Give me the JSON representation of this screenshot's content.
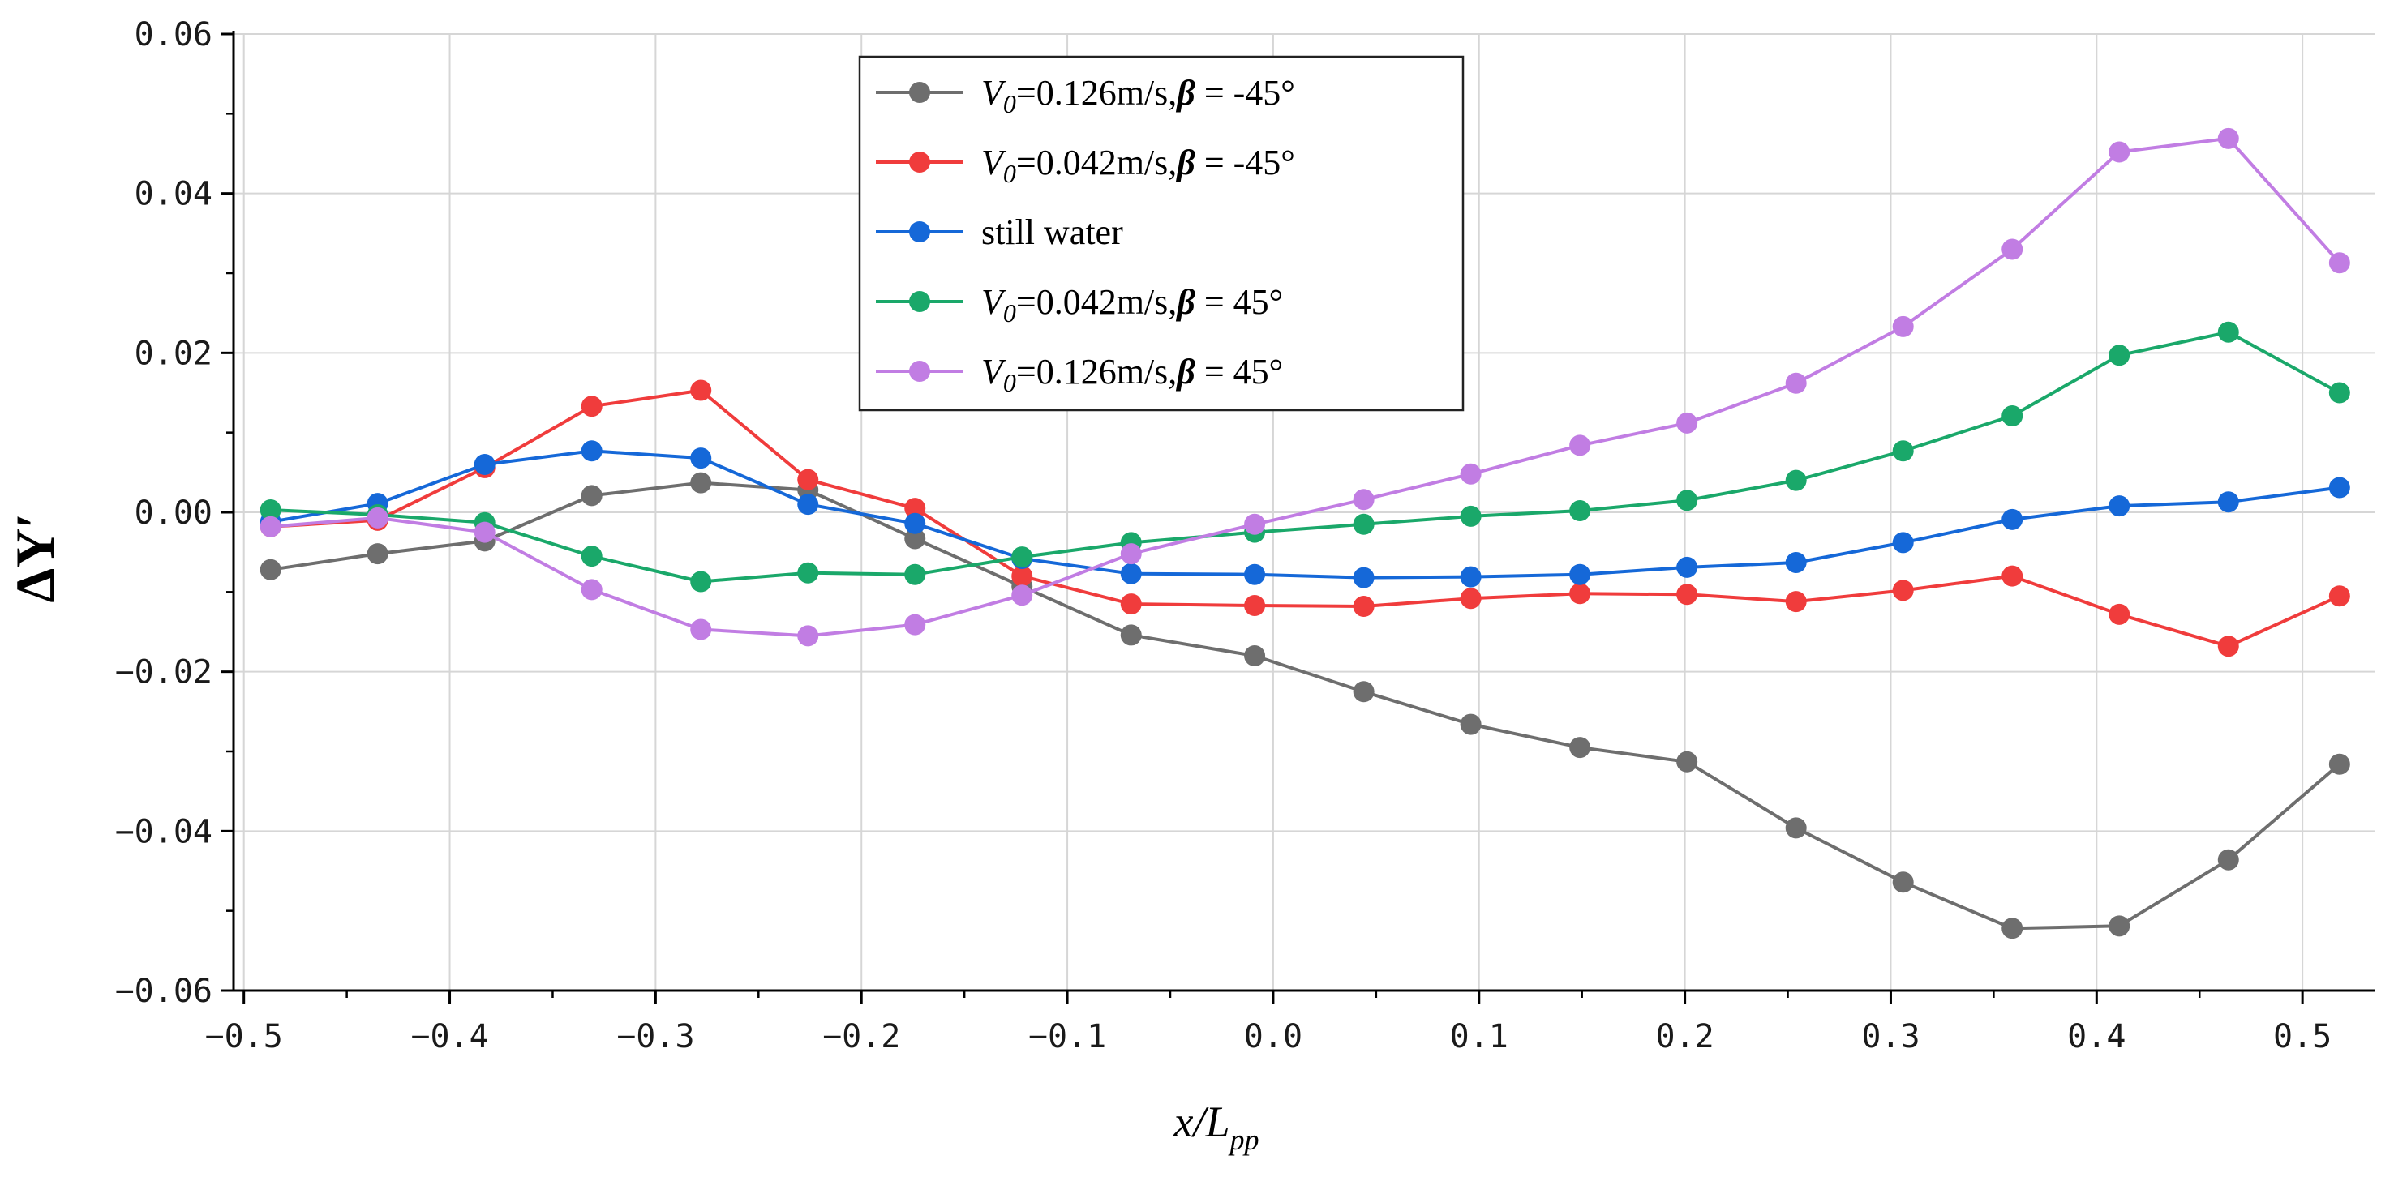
{
  "chart_data": {
    "type": "line",
    "xlabel": "x/L",
    "xlabel_sub": "pp",
    "ylabel": "ΔY′",
    "xlim": [
      -0.505,
      0.535
    ],
    "ylim": [
      -0.06,
      0.06
    ],
    "grid": true,
    "legend_position": "top-center",
    "x_ticks": [
      -0.5,
      -0.4,
      -0.3,
      -0.2,
      -0.1,
      0.0,
      0.1,
      0.2,
      0.3,
      0.4,
      0.5
    ],
    "x_tick_labels": [
      "−0.5",
      "−0.4",
      "−0.3",
      "−0.2",
      "−0.1",
      "0.0",
      "0.1",
      "0.2",
      "0.3",
      "0.4",
      "0.5"
    ],
    "y_ticks": [
      -0.06,
      -0.04,
      -0.02,
      0.0,
      0.02,
      0.04,
      0.06
    ],
    "y_tick_labels": [
      "−0.06",
      "−0.04",
      "−0.02",
      "0.00",
      "0.02",
      "0.04",
      "0.06"
    ],
    "x": [
      -0.487,
      -0.435,
      -0.383,
      -0.331,
      -0.278,
      -0.226,
      -0.174,
      -0.122,
      -0.069,
      -0.009,
      0.044,
      0.096,
      0.149,
      0.201,
      0.254,
      0.306,
      0.359,
      0.411,
      0.464,
      0.518
    ],
    "series": [
      {
        "name": "V0=0.126m/s,β = -45°",
        "legend_prefix": "=0.126m/s,",
        "legend_suffix": " = -45°",
        "color": "#6e6e6e",
        "values": [
          -0.0072,
          -0.0052,
          -0.0036,
          0.0021,
          0.0037,
          0.0028,
          -0.0033,
          -0.0093,
          -0.0154,
          -0.018,
          -0.0225,
          -0.0266,
          -0.0295,
          -0.0313,
          -0.0396,
          -0.0464,
          -0.0522,
          -0.0519,
          -0.0436,
          -0.0316
        ]
      },
      {
        "name": "V0=0.042m/s,β = -45°",
        "legend_prefix": "=0.042m/s,",
        "legend_suffix": " = -45°",
        "color": "#f03c3c",
        "values": [
          -0.0018,
          -0.001,
          0.0056,
          0.0133,
          0.0153,
          0.0041,
          0.0005,
          -0.008,
          -0.0115,
          -0.0117,
          -0.0118,
          -0.0108,
          -0.0102,
          -0.0103,
          -0.0112,
          -0.0098,
          -0.008,
          -0.0128,
          -0.0168,
          -0.0105
        ]
      },
      {
        "name": "still water",
        "legend_label": "still water",
        "color": "#1568d8",
        "values": [
          -0.0012,
          0.0011,
          0.006,
          0.0077,
          0.0068,
          0.001,
          -0.0014,
          -0.0058,
          -0.0077,
          -0.0078,
          -0.0082,
          -0.0081,
          -0.0078,
          -0.0069,
          -0.0063,
          -0.0038,
          -0.0009,
          0.0008,
          0.0013,
          0.0031
        ]
      },
      {
        "name": "V0=0.042m/s,β = 45°",
        "legend_prefix": "=0.042m/s,",
        "legend_suffix": " = 45°",
        "color": "#1aa86a",
        "values": [
          0.0003,
          -0.0003,
          -0.0013,
          -0.0055,
          -0.0087,
          -0.0076,
          -0.0078,
          -0.0056,
          -0.0038,
          -0.0025,
          -0.0015,
          -0.0005,
          0.0002,
          0.0015,
          0.004,
          0.0077,
          0.0121,
          0.0197,
          0.0226,
          0.015
        ]
      },
      {
        "name": "V0=0.126m/s,β = 45°",
        "legend_prefix": "=0.126m/s,",
        "legend_suffix": " = 45°",
        "color": "#c17de3",
        "values": [
          -0.0018,
          -0.0007,
          -0.0025,
          -0.0097,
          -0.0147,
          -0.0155,
          -0.0141,
          -0.0104,
          -0.0052,
          -0.0015,
          0.0016,
          0.0048,
          0.0084,
          0.0112,
          0.0162,
          0.0233,
          0.033,
          0.0452,
          0.0469,
          0.0313
        ]
      }
    ]
  },
  "legend": {
    "v_letter": "V",
    "v_sub": "0",
    "beta": "β"
  }
}
